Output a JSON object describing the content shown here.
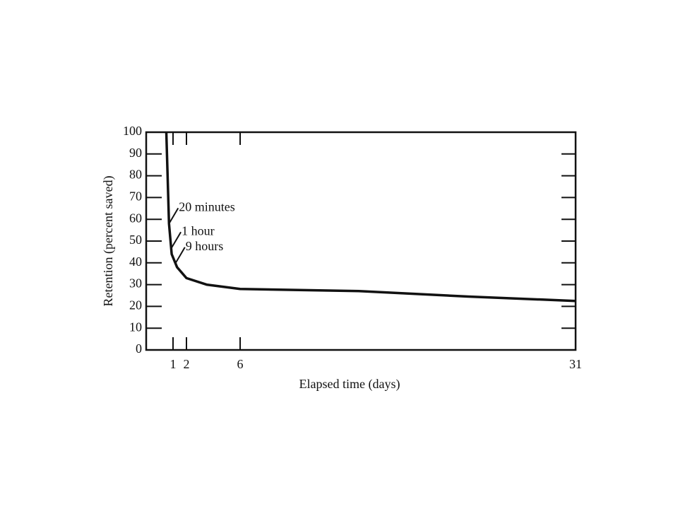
{
  "chart_data": {
    "type": "line",
    "x_label": "Elapsed time (days)",
    "y_label": "Retention (percent saved)",
    "x": [
      0.5,
      0.7,
      0.9,
      1.3,
      2,
      3.5,
      6,
      15,
      23,
      31
    ],
    "series": [
      {
        "color": "#111111",
        "values": [
          100,
          58,
          44,
          38,
          33,
          30,
          28,
          27,
          24.5,
          22.5
        ]
      }
    ],
    "xlim": [
      -1,
      31
    ],
    "xticks": [
      1,
      2,
      6,
      31
    ],
    "ylim": [
      0,
      100
    ],
    "yticks": [
      0,
      10,
      20,
      30,
      40,
      50,
      60,
      70,
      80,
      90,
      100
    ],
    "annotations": [
      {
        "text": "20 minutes",
        "x": 0.7,
        "y": 58
      },
      {
        "text": "1 hour",
        "x": 0.9,
        "y": 47
      },
      {
        "text": "9 hours",
        "x": 1.2,
        "y": 40
      }
    ]
  }
}
